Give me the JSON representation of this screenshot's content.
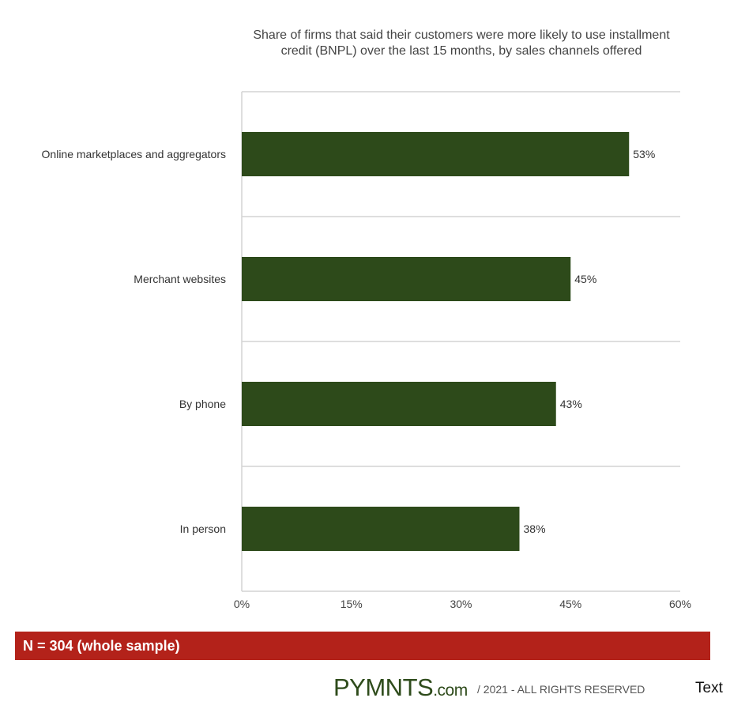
{
  "chart_data": {
    "type": "bar",
    "orientation": "horizontal",
    "title": "Share of firms that said their customers were more likely to use installment credit (BNPL) over the last 15 months, by sales channels offered",
    "categories": [
      "Online marketplaces and aggregators",
      "Merchant websites",
      "By phone",
      "In person"
    ],
    "values": [
      53,
      45,
      43,
      38
    ],
    "value_labels": [
      "53%",
      "45%",
      "43%",
      "38%"
    ],
    "xlim": [
      0,
      60
    ],
    "x_ticks": [
      0,
      15,
      30,
      45,
      60
    ],
    "x_tick_labels": [
      "0%",
      "15%",
      "30%",
      "45%",
      "60%"
    ],
    "bar_color": "#2d4a1a",
    "grid": true
  },
  "sample_note": "N = 304 (whole sample)",
  "sample_bar_color": "#b3221a",
  "footer": {
    "logo_main": "PYMNTS",
    "logo_suffix": ".com",
    "rights": "/ 2021 - ALL RIGHTS RESERVED",
    "extra_text": "Text"
  }
}
